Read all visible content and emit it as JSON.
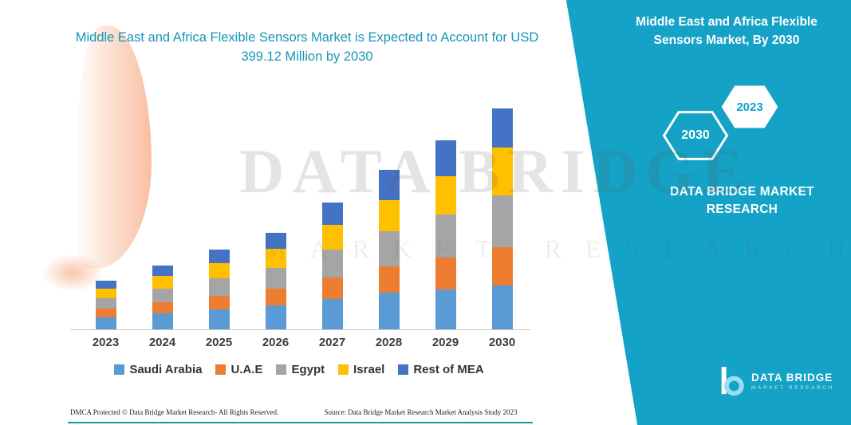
{
  "title": "Middle East and Africa Flexible Sensors Market is Expected to Account for USD 399.12 Million by 2030",
  "side_panel": {
    "title": "Middle East and Africa Flexible Sensors Market, By 2030",
    "hexagon_back": "2030",
    "hexagon_front": "2023",
    "brand": "DATA BRIDGE MARKET RESEARCH"
  },
  "watermark": {
    "line1": "DATA BRIDGE",
    "line2": "MARKET RESEARCH"
  },
  "logo": {
    "brand": "DATA BRIDGE",
    "sub": "MARKET RESEARCH"
  },
  "footer": {
    "dmca": "DMCA Protected © Data Bridge Market Research-  All Rights Reserved.",
    "source": "Source: Data Bridge Market Research  Market Analysis Study 2023"
  },
  "colors": {
    "panel_teal": "#14A2C6",
    "title_teal": "#1795B8",
    "axis_label_gray": "#3D3D3D"
  },
  "chart_data": {
    "type": "bar",
    "stacked": true,
    "title": "Middle East and Africa Flexible Sensors Market is Expected to Account for USD 399.12 Million by 2030",
    "xlabel": "",
    "ylabel": "",
    "value_unit": "USD Million",
    "grid": false,
    "legend_position": "bottom",
    "categories": [
      "2023",
      "2024",
      "2025",
      "2026",
      "2027",
      "2028",
      "2029",
      "2030"
    ],
    "series": [
      {
        "name": "Saudi Arabia",
        "color": "#5B9BD5",
        "values": [
          22,
          29,
          36,
          43,
          55,
          66,
          72,
          79
        ]
      },
      {
        "name": "U.A.E",
        "color": "#ED7D31",
        "values": [
          15,
          20,
          25,
          30,
          39,
          48,
          58,
          69
        ]
      },
      {
        "name": "Egypt",
        "color": "#A5A5A5",
        "values": [
          19,
          25,
          31,
          38,
          50,
          63,
          77,
          94
        ]
      },
      {
        "name": "Israel",
        "color": "#FFC000",
        "values": [
          17,
          22,
          28,
          34,
          45,
          57,
          70,
          86
        ]
      },
      {
        "name": "Rest of MEA",
        "color": "#4472C4",
        "values": [
          15,
          19,
          24,
          29,
          40,
          54,
          64,
          71.12
        ]
      }
    ],
    "totals_note": "2030 total equals 399.12 USD Million as stated in the title; other yearly values estimated from bar heights"
  }
}
